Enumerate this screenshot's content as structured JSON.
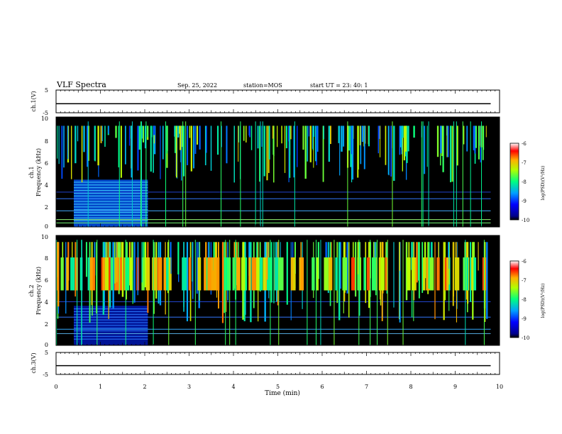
{
  "header": {
    "title": "VLF Spectra",
    "date": "Sep. 25, 2022",
    "station": "station=MOS",
    "start": "start  UT  =   23: 40: 1"
  },
  "chart_data": [
    {
      "type": "line",
      "ylabel": "ch.1(V)",
      "ylim": [
        -5,
        5
      ],
      "yticks": [
        "5",
        "-5"
      ],
      "series": [
        {
          "x": [
            0,
            9.8
          ],
          "y": [
            -1,
            -1
          ]
        }
      ]
    },
    {
      "type": "heatmap",
      "ylabel": "ch.1\nFrequency (kHz)",
      "ylim": [
        0,
        10
      ],
      "yticks": [
        "0",
        "2",
        "4",
        "6",
        "8",
        "10"
      ],
      "colorbar": {
        "label": "log(PSD)(V²/Hz)",
        "range": [
          -10,
          -6
        ],
        "ticks": [
          "-6",
          "-7",
          "-8",
          "-9",
          "-10"
        ]
      }
    },
    {
      "type": "heatmap",
      "ylabel": "ch.2\nFrequency (kHz)",
      "ylim": [
        0,
        10
      ],
      "yticks": [
        "0",
        "2",
        "4",
        "6",
        "8",
        "10"
      ],
      "colorbar": {
        "label": "log(PSD)(V²/Hz)",
        "range": [
          -10,
          -6
        ],
        "ticks": [
          "-6",
          "-7",
          "-8",
          "-9",
          "-10"
        ]
      }
    },
    {
      "type": "line",
      "ylabel": "ch.3(V)",
      "ylim": [
        -5,
        5
      ],
      "yticks": [
        "5",
        "-5"
      ],
      "series": [
        {
          "x": [
            0,
            9.8
          ],
          "y": [
            -1,
            -1
          ]
        }
      ]
    }
  ],
  "xaxis": {
    "label": "Time (min)",
    "range": [
      0,
      10
    ],
    "ticks": [
      "0",
      "1",
      "2",
      "3",
      "4",
      "5",
      "6",
      "7",
      "8",
      "9",
      "10"
    ]
  },
  "colors": {
    "background": "#000000",
    "frame": "#000000"
  }
}
